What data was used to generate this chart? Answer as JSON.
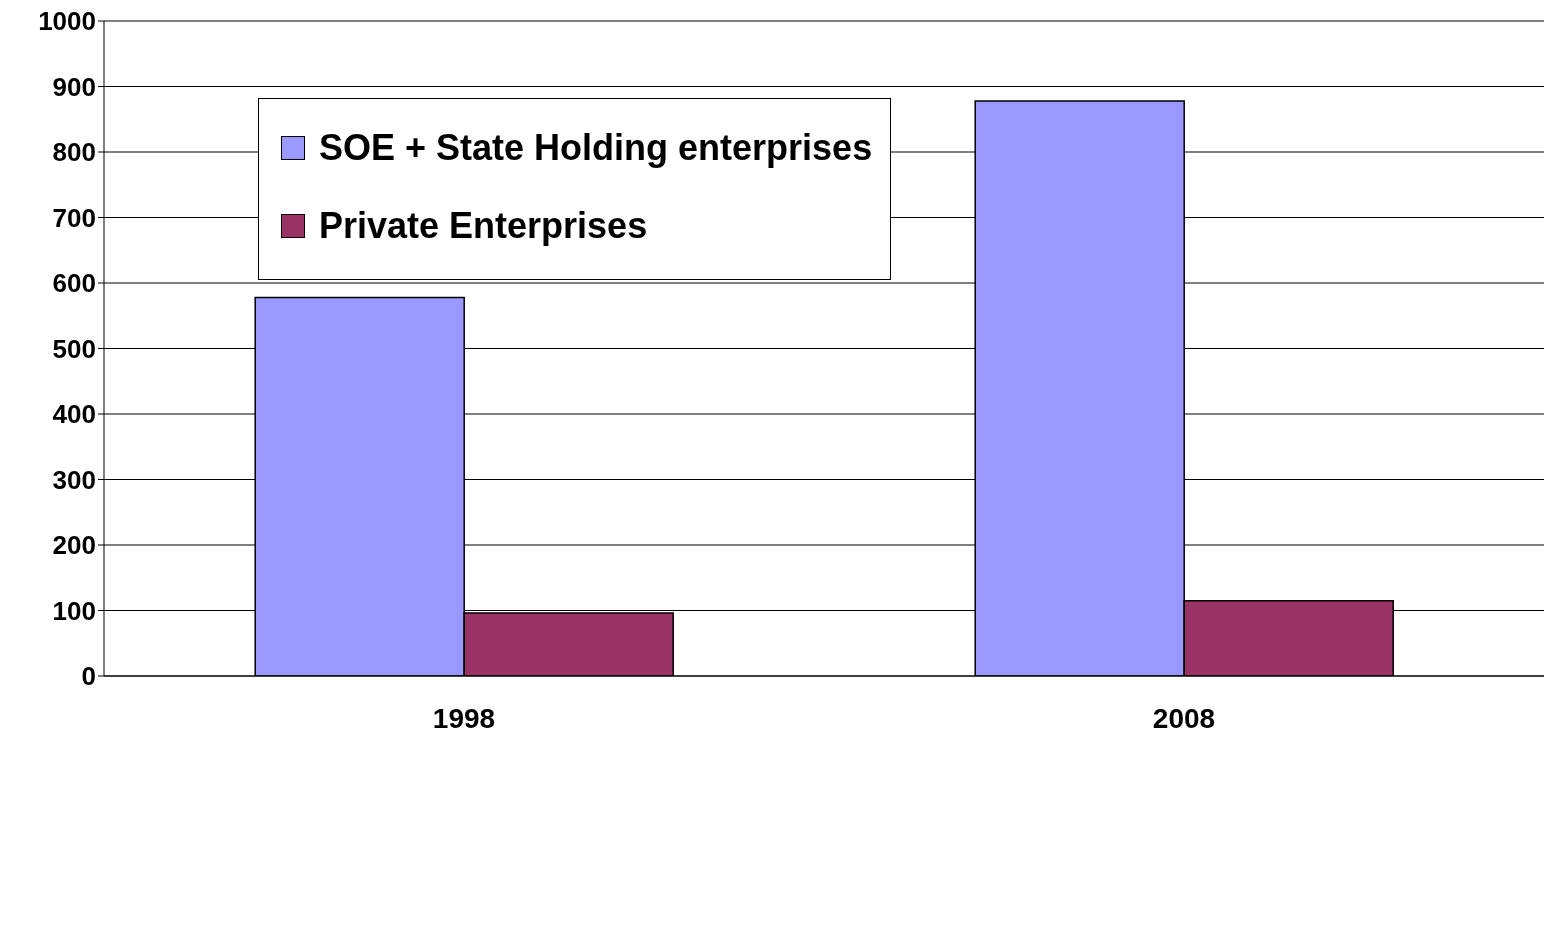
{
  "chart_data": {
    "type": "bar",
    "categories": [
      "1998",
      "2008"
    ],
    "series": [
      {
        "name": "SOE + State Holding enterprises",
        "color": "#9999ff",
        "values": [
          578,
          878
        ]
      },
      {
        "name": "Private Enterprises",
        "color": "#993366",
        "values": [
          96,
          115
        ]
      }
    ],
    "ylim": [
      0,
      1000
    ],
    "yticks": [
      0,
      100,
      200,
      300,
      400,
      500,
      600,
      700,
      800,
      900,
      1000
    ],
    "grid": "y",
    "legend": "top left"
  }
}
